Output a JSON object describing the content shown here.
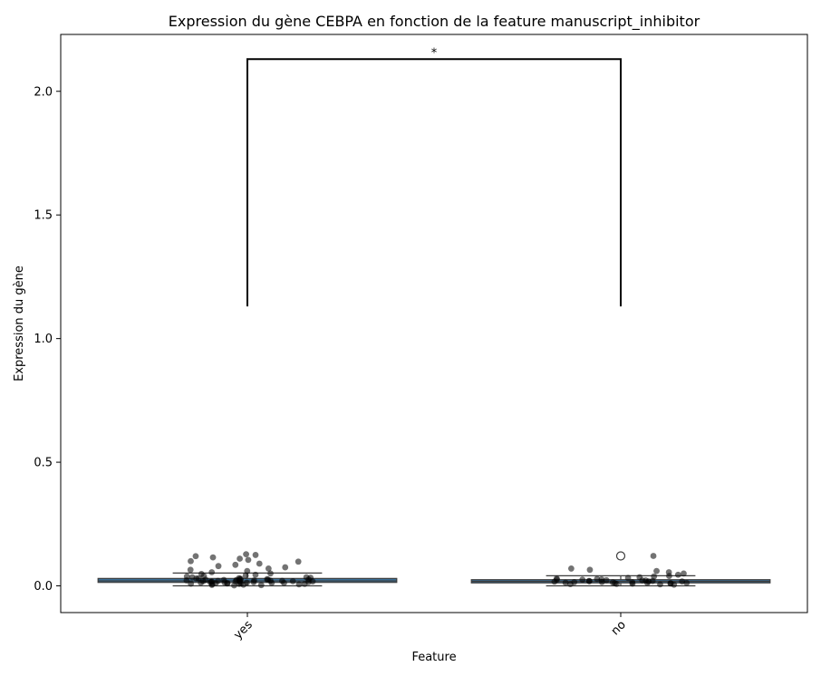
{
  "chart_data": {
    "type": "box",
    "title": "Expression du gène CEBPA en fonction de la feature manuscript_inhibitor",
    "xlabel": "Feature",
    "ylabel": "Expression du gène",
    "categories": [
      "yes",
      "no"
    ],
    "ylim": [
      -0.108,
      2.23
    ],
    "yticks": [
      "0.0",
      "0.5",
      "1.0",
      "1.5",
      "2.0"
    ],
    "ytick_values": [
      0.0,
      0.5,
      1.0,
      1.5,
      2.0
    ],
    "box_color": "#3a6e96",
    "point_color": "#000000",
    "boxes": [
      {
        "category": "yes",
        "whisker_low": 0.0,
        "q1": 0.014,
        "median": 0.02,
        "q3": 0.03,
        "whisker_high": 0.052,
        "outliers": []
      },
      {
        "category": "no",
        "whisker_low": 0.0,
        "q1": 0.012,
        "median": 0.018,
        "q3": 0.025,
        "whisker_high": 0.041,
        "outliers": [
          0.121
        ]
      }
    ],
    "points": [
      {
        "category": "yes",
        "values": [
          0.128,
          0.125,
          0.12,
          0.115,
          0.11,
          0.105,
          0.1,
          0.098,
          0.09,
          0.085,
          0.08,
          0.075,
          0.07,
          0.065,
          0.06,
          0.055,
          0.05,
          0.048,
          0.045,
          0.042,
          0.04,
          0.038,
          0.035,
          0.033,
          0.03,
          0.028,
          0.026,
          0.025,
          0.024,
          0.022,
          0.021,
          0.02,
          0.019,
          0.018,
          0.017,
          0.016,
          0.015,
          0.014,
          0.013,
          0.012,
          0.011,
          0.01,
          0.009,
          0.008,
          0.007,
          0.006,
          0.005,
          0.004,
          0.003,
          0.002,
          0.02,
          0.025,
          0.03,
          0.015,
          0.01,
          0.035,
          0.022,
          0.018,
          0.012,
          0.027,
          0.016,
          0.024,
          0.031,
          0.013,
          0.008,
          0.019,
          0.028,
          0.021,
          0.011,
          0.017
        ]
      },
      {
        "category": "no",
        "values": [
          0.121,
          0.07,
          0.065,
          0.06,
          0.055,
          0.05,
          0.045,
          0.04,
          0.038,
          0.035,
          0.032,
          0.03,
          0.028,
          0.026,
          0.025,
          0.023,
          0.022,
          0.02,
          0.019,
          0.018,
          0.017,
          0.016,
          0.015,
          0.014,
          0.013,
          0.012,
          0.011,
          0.01,
          0.009,
          0.008,
          0.007,
          0.006,
          0.005,
          0.02,
          0.025,
          0.015,
          0.018,
          0.012,
          0.022,
          0.01
        ]
      }
    ],
    "annotation": {
      "text": "*",
      "from": "yes",
      "to": "no",
      "y_top": 2.13,
      "y_bottom": 1.13
    },
    "grid": false,
    "legend": "none"
  }
}
